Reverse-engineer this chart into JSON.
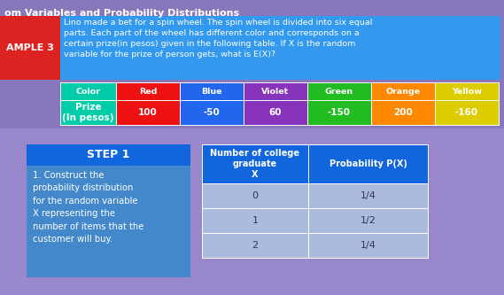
{
  "title": "om Variables and Probability Distributions",
  "background_color": "#8877bb",
  "example_label": "AMPLE 3",
  "example_label_bg": "#dd2222",
  "example_text_bg": "#3399ee",
  "example_text": "Lino made a bet for a spin wheel. The spin wheel is divided into six equal\nparts. Each part of the wheel has different color and corresponds on a\ncertain prize(in pesos) given in the following table. If X is the random\nvariable for the prize of person gets, what is E(X)?",
  "color_table_bg": "#3399ee",
  "color_table_headers": [
    "Color",
    "Red",
    "Blue",
    "Violet",
    "Green",
    "Orange",
    "Yellow"
  ],
  "color_table_prizes": [
    "Prize\n(In pesos)",
    "100",
    "-50",
    "60",
    "-150",
    "200",
    "-160"
  ],
  "header_cell_colors": [
    "#00ccaa",
    "#ee1111",
    "#2266ee",
    "#8833bb",
    "#22bb22",
    "#ff8800",
    "#ddcc00"
  ],
  "prize_cell_colors": [
    "#00ccaa",
    "#ee1111",
    "#2266ee",
    "#8833bb",
    "#22bb22",
    "#ff8800",
    "#ddcc00"
  ],
  "step1_header_bg": "#1166dd",
  "step1_body_bg": "#4488cc",
  "step1_title": "STEP 1",
  "step1_text": "1. Construct the\nprobability distribution\nfor the random variable\nX representing the\nnumber of items that the\ncustomer will buy.",
  "ptable_header_bg": "#1166dd",
  "ptable_row_bg": "#aabbdd",
  "ptable_col1_header": "Number of college\ngraduate\nX",
  "ptable_col2_header": "Probability P(X)",
  "ptable_rows": [
    [
      "0",
      "1/4"
    ],
    [
      "1",
      "1/2"
    ],
    [
      "2",
      "1/4"
    ]
  ]
}
